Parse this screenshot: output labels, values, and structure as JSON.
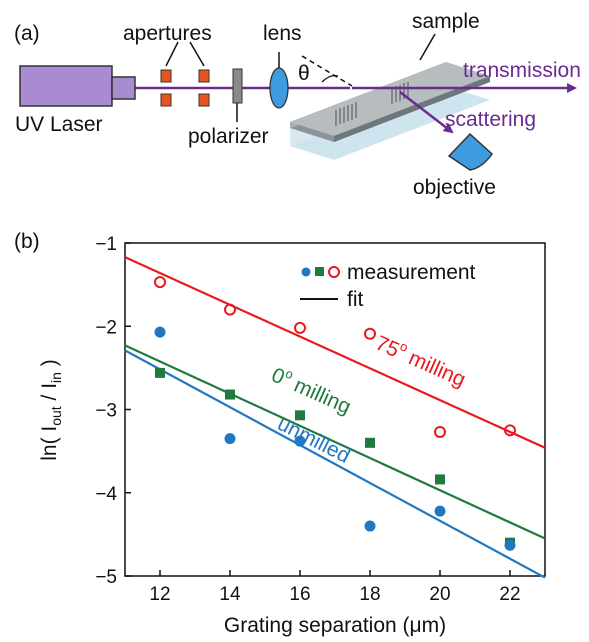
{
  "panel_a": {
    "label": "(a)",
    "components": {
      "laser": "UV Laser",
      "apertures": "apertures",
      "polarizer": "polarizer",
      "lens": "lens",
      "sample": "sample",
      "objective": "objective",
      "theta": "θ"
    },
    "beams": {
      "transmission": "transmission",
      "scattering": "scattering"
    },
    "colors": {
      "laser_fill": "#a98bd1",
      "aperture": "#e8541f",
      "lens": "#3d9be0",
      "beam": "#6a2c91"
    }
  },
  "panel_b": {
    "label": "(b)",
    "legend": {
      "measurement": "measurement",
      "fit": "fit"
    },
    "line_labels": {
      "red": "75",
      "red_deg": "o",
      "red_suffix": " milling",
      "green": "0",
      "green_deg": "o",
      "green_suffix": " milling",
      "blue": "unmilled"
    },
    "ylabel": {
      "pre": "ln( I",
      "sub1": "out",
      "mid": " / I",
      "sub2": "in",
      "post": " )"
    }
  },
  "chart_data": {
    "type": "scatter",
    "title": "",
    "xlabel": "Grating separation (μm)",
    "ylabel": "ln( Iout / Iin )",
    "xlim": [
      11,
      23
    ],
    "ylim": [
      -5,
      -1
    ],
    "xticks": [
      12,
      14,
      16,
      18,
      20,
      22
    ],
    "yticks": [
      -1,
      -2,
      -3,
      -4,
      -5
    ],
    "grid": false,
    "legend_position": "top-right",
    "series": [
      {
        "color": "#e8191f",
        "marker": "open-circle",
        "x": [
          12,
          14,
          16,
          18,
          20,
          22
        ],
        "y": [
          -1.47,
          -1.8,
          -2.02,
          -2.09,
          -3.27,
          -3.25
        ],
        "fit": {
          "x": [
            11,
            23
          ],
          "y": [
            -1.17,
            -3.46
          ]
        }
      },
      {
        "color": "#1f7a3f",
        "marker": "square",
        "x": [
          12,
          14,
          16,
          18,
          20,
          22
        ],
        "y": [
          -2.56,
          -2.82,
          -3.07,
          -3.4,
          -3.84,
          -4.6
        ],
        "fit": {
          "x": [
            11,
            23
          ],
          "y": [
            -2.23,
            -4.55
          ]
        }
      },
      {
        "color": "#1f78c1",
        "marker": "filled-circle",
        "x": [
          12,
          14,
          16,
          18,
          20,
          22
        ],
        "y": [
          -2.07,
          -3.35,
          -3.38,
          -4.4,
          -4.22,
          -4.63
        ],
        "fit": {
          "x": [
            11,
            23
          ],
          "y": [
            -2.29,
            -5.02
          ]
        }
      }
    ]
  }
}
